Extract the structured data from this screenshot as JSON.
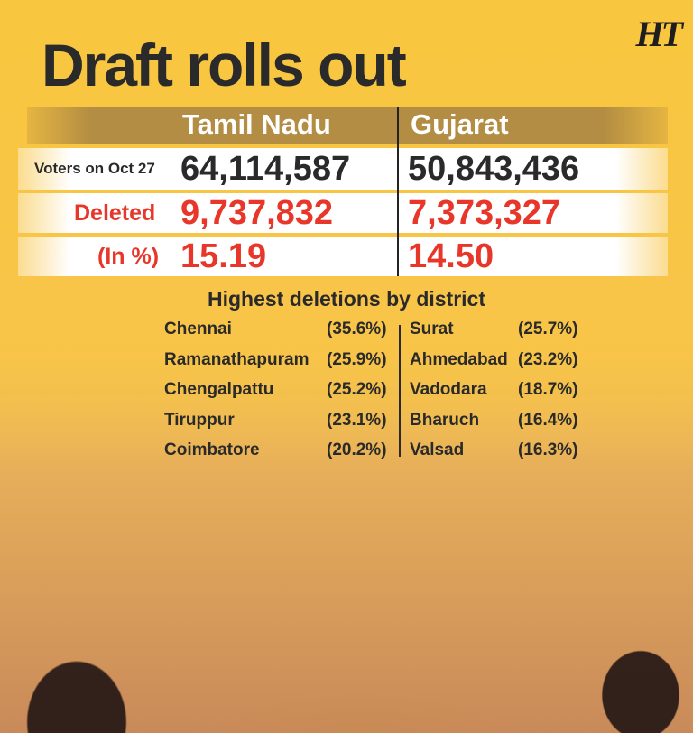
{
  "logo": "HT",
  "title": "Draft rolls out",
  "table": {
    "columns": [
      "Tamil Nadu",
      "Gujarat"
    ],
    "rows": [
      {
        "label": "Voters on Oct 27",
        "values": [
          "64,114,587",
          "50,843,436"
        ]
      },
      {
        "label": "Deleted",
        "values": [
          "9,737,832",
          "7,373,327"
        ]
      },
      {
        "label": "(In %)",
        "values": [
          "15.19",
          "14.50"
        ]
      }
    ]
  },
  "districts": {
    "title": "Highest deletions by district",
    "tamil_nadu": [
      {
        "name": "Chennai",
        "pct": "(35.6%)"
      },
      {
        "name": "Ramanathapuram",
        "pct": "(25.9%)"
      },
      {
        "name": "Chengalpattu",
        "pct": "(25.2%)"
      },
      {
        "name": "Tiruppur",
        "pct": "(23.1%)"
      },
      {
        "name": "Coimbatore",
        "pct": "(20.2%)"
      }
    ],
    "gujarat": [
      {
        "name": "Surat",
        "pct": "(25.7%)"
      },
      {
        "name": "Ahmedabad",
        "pct": "(23.2%)"
      },
      {
        "name": "Vadodara",
        "pct": "(18.7%)"
      },
      {
        "name": "Bharuch",
        "pct": "(16.4%)"
      },
      {
        "name": "Valsad",
        "pct": "(16.3%)"
      }
    ]
  },
  "colors": {
    "background": "#f8c548",
    "header_band": "#b38d43",
    "highlight": "#e8372a",
    "text": "#2a2a2a"
  }
}
